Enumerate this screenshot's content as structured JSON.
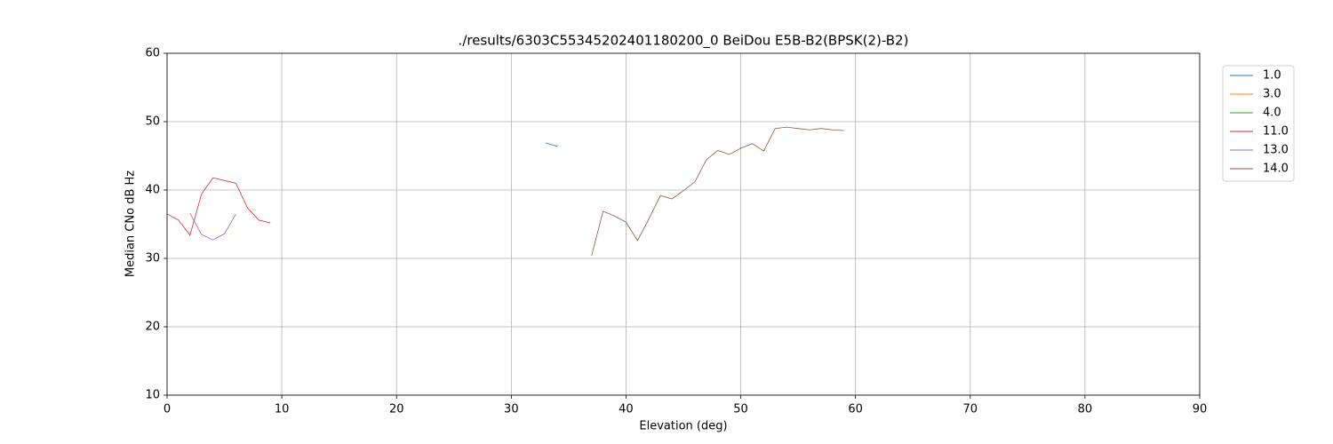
{
  "chart_data": {
    "type": "line",
    "title": "./results/6303C55345202401180200_0 BeiDou E5B-B2(BPSK(2)-B2)",
    "x_label": "Elevation (deg)",
    "y_label": "Median CNo dB Hz",
    "xlim": [
      0,
      90
    ],
    "ylim": [
      10,
      60
    ],
    "xticks": [
      0,
      10,
      20,
      30,
      40,
      50,
      60,
      70,
      80,
      90
    ],
    "yticks": [
      10,
      20,
      30,
      40,
      50,
      60
    ],
    "grid": true,
    "legend": "outside right",
    "series": [
      {
        "name": "1.0",
        "color": "#1f77b4",
        "x": [
          33,
          34
        ],
        "values": [
          46.9,
          46.4
        ]
      },
      {
        "name": "3.0",
        "color": "#ff7f0e",
        "x": [],
        "values": []
      },
      {
        "name": "4.0",
        "color": "#2ca02c",
        "x": [],
        "values": []
      },
      {
        "name": "11.0",
        "color": "#d62728",
        "x": [
          0,
          1,
          2,
          3,
          4,
          5,
          6,
          7,
          8,
          9
        ],
        "values": [
          36.5,
          35.6,
          33.4,
          39.4,
          41.8,
          41.4,
          41.0,
          37.4,
          35.6,
          35.2
        ]
      },
      {
        "name": "13.0",
        "color": "#9467bd",
        "x": [
          2,
          3,
          4,
          5,
          6
        ],
        "values": [
          36.6,
          33.5,
          32.7,
          33.6,
          36.5
        ]
      },
      {
        "name": "14.0",
        "color": "#8c564b",
        "x": [
          37,
          38,
          39,
          40,
          41,
          42,
          43,
          44,
          45,
          46,
          47,
          48,
          49,
          50,
          51,
          52,
          53,
          54,
          55,
          56,
          57,
          58,
          59
        ],
        "values": [
          30.4,
          36.9,
          36.2,
          35.3,
          32.6,
          35.8,
          39.2,
          38.7,
          39.9,
          41.2,
          44.4,
          45.8,
          45.2,
          46.1,
          46.8,
          45.7,
          49.0,
          49.2,
          49.0,
          48.8,
          49.0,
          48.8,
          48.7
        ]
      }
    ]
  }
}
